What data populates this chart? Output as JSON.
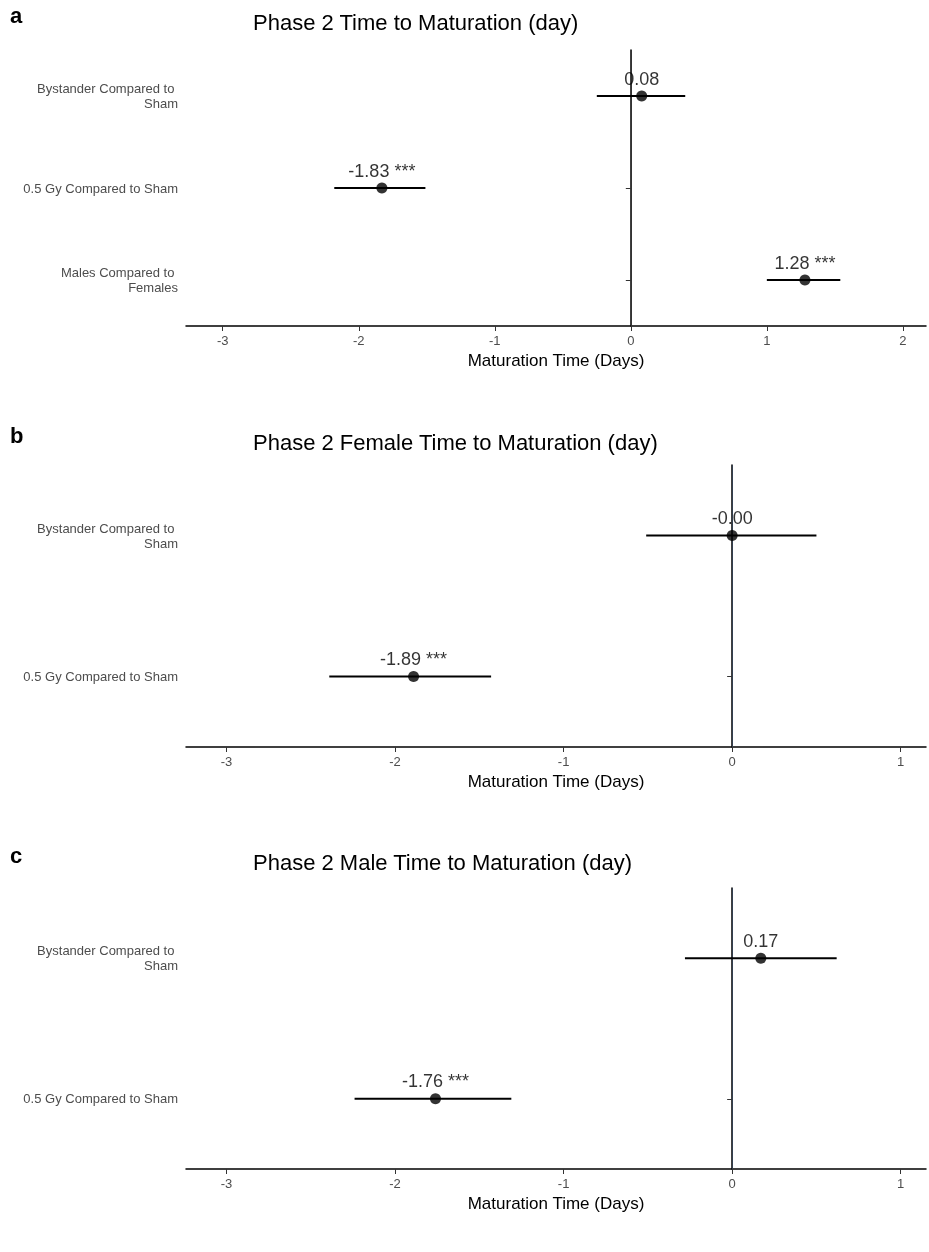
{
  "chart_data": [
    {
      "type": "scatter",
      "orientation": "horizontal",
      "title": "Phase 2 Time to Maturation (day)",
      "xlabel": "Maturation Time (Days)",
      "annotations": [
        "a"
      ],
      "categories": [
        "Bystander Compared to Sham",
        "0.5 Gy Compared to Sham",
        "Males Compared to Females"
      ],
      "series": [
        {
          "color": "#000000",
          "values": [
            0.08,
            -1.83,
            1.28
          ],
          "errors": [
            [
              -0.25,
              0.4
            ],
            [
              -2.18,
              -1.51
            ],
            [
              1.0,
              1.54
            ]
          ],
          "value_labels": [
            "0.08",
            "-1.83 ***",
            "1.28 ***"
          ]
        }
      ],
      "xlim": [
        -3.27,
        2.17
      ],
      "xticks": [
        -3,
        -2,
        -1,
        0,
        1,
        2
      ],
      "ref_lines": [
        {
          "axis": "x",
          "value": 0,
          "color": "#333333"
        }
      ],
      "grid": false,
      "marker": "circle"
    },
    {
      "type": "scatter",
      "orientation": "horizontal",
      "title": "Phase 2 Female Time to Maturation (day)",
      "xlabel": "Maturation Time (Days)",
      "annotations": [
        "b"
      ],
      "categories": [
        "Bystander Compared to Sham",
        "0.5 Gy Compared to Sham"
      ],
      "series": [
        {
          "color": "#000000",
          "values": [
            0.0,
            -1.89
          ],
          "errors": [
            [
              -0.51,
              0.5
            ],
            [
              -2.39,
              -1.43
            ]
          ],
          "value_labels": [
            "-0.00",
            "-1.89 ***"
          ]
        }
      ],
      "xlim": [
        -3.24,
        1.15
      ],
      "xticks": [
        -3,
        -2,
        -1,
        0,
        1
      ],
      "ref_lines": [
        {
          "axis": "x",
          "value": 0,
          "color": "#333f4f"
        }
      ],
      "grid": false,
      "marker": "circle"
    },
    {
      "type": "scatter",
      "orientation": "horizontal",
      "title": "Phase 2 Male Time to Maturation (day)",
      "xlabel": "Maturation Time (Days)",
      "annotations": [
        "c"
      ],
      "categories": [
        "Bystander Compared to Sham",
        "0.5 Gy Compared to Sham"
      ],
      "series": [
        {
          "color": "#000000",
          "values": [
            0.17,
            -1.76
          ],
          "errors": [
            [
              -0.28,
              0.62
            ],
            [
              -2.24,
              -1.31
            ]
          ],
          "value_labels": [
            "0.17",
            "-1.76 ***"
          ]
        }
      ],
      "xlim": [
        -3.24,
        1.15
      ],
      "xticks": [
        -3,
        -2,
        -1,
        0,
        1
      ],
      "ref_lines": [
        {
          "axis": "x",
          "value": 0,
          "color": "#333f4f"
        }
      ],
      "grid": false,
      "marker": "circle"
    }
  ]
}
